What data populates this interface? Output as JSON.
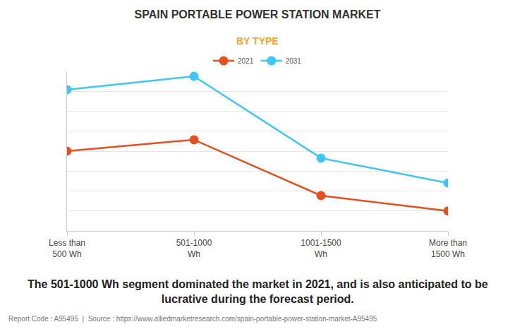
{
  "chart_data": {
    "type": "line",
    "title": "SPAIN PORTABLE POWER STATION MARKET",
    "subtitle": "BY TYPE",
    "categories": [
      "Less than 500 Wh",
      "501-1000 Wh",
      "1001-1500 Wh",
      "More than 1500 Wh"
    ],
    "series": [
      {
        "name": "2021",
        "color": "#e5501e",
        "values": [
          4.0,
          4.57,
          1.77,
          1.0
        ],
        "marker": "circle",
        "line_style": "solid"
      },
      {
        "name": "2031",
        "color": "#3ec6f5",
        "values": [
          7.08,
          7.75,
          3.65,
          2.4
        ],
        "marker": "circle",
        "line_style": "solid"
      }
    ],
    "ylim": [
      0,
      8
    ],
    "yticks": [
      0,
      1,
      2,
      3,
      4,
      5,
      6,
      7,
      8
    ],
    "grid": true,
    "legend": "top",
    "tick_labels": "x",
    "annotations": [
      "The 501-1000 Wh segment dominated the market in 2021, and is also anticipated to be lucrative during the forecast period.",
      "Report Code : A95495  |  Source : https://www.alliedmarketresearch.com/spain-portable-power-station-market-A95495"
    ]
  }
}
